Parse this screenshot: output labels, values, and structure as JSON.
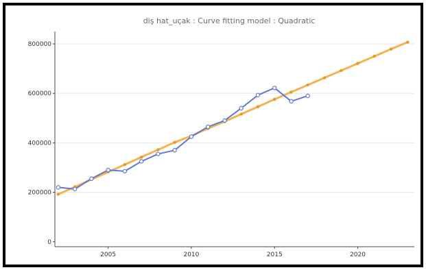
{
  "chart_data": {
    "type": "line",
    "title": "diş hat_uçak : Curve fitting model : Quadratic",
    "xlabel": "",
    "ylabel": "",
    "xlim": [
      2001.8,
      2023.4
    ],
    "ylim": [
      -20000,
      850000
    ],
    "x_ticks": [
      2005,
      2010,
      2015,
      2020
    ],
    "y_ticks": [
      0,
      200000,
      400000,
      600000,
      800000
    ],
    "x_tick_labels": [
      "2005",
      "2010",
      "2015",
      "2020"
    ],
    "y_tick_labels": [
      "0",
      "200000",
      "400000",
      "600000",
      "800000"
    ],
    "grid": true,
    "legend": "none",
    "series": [
      {
        "color": "#5b79d6",
        "x": [
          2002,
          2003,
          2004,
          2005,
          2006,
          2007,
          2008,
          2009,
          2010,
          2011,
          2012,
          2013,
          2014,
          2015,
          2016,
          2017
        ],
        "values": [
          220000,
          213000,
          255000,
          290000,
          285000,
          325000,
          355000,
          370000,
          425000,
          465000,
          490000,
          540000,
          593000,
          622000,
          568000,
          590000
        ]
      },
      {
        "color": "#f5b350",
        "x": [
          2002,
          2003,
          2004,
          2005,
          2006,
          2007,
          2008,
          2009,
          2010,
          2011,
          2012,
          2013,
          2014,
          2015,
          2016,
          2017,
          2018,
          2019,
          2020,
          2021,
          2022,
          2023
        ],
        "values": [
          192000,
          222000,
          252000,
          282000,
          312000,
          342000,
          372000,
          402000,
          428000,
          458000,
          486000,
          516000,
          546000,
          576000,
          605000,
          634000,
          663000,
          692000,
          721000,
          750000,
          779000,
          807000
        ]
      }
    ]
  }
}
